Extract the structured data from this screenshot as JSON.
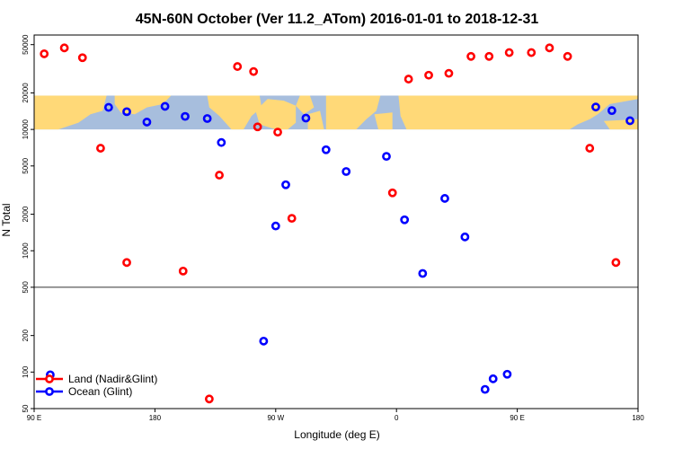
{
  "chart_data": {
    "type": "scatter",
    "title": "45N-60N October (Ver 11.2_ATom)   2016-01-01 to 2018-12-31",
    "xlabel": "Longitude (deg E)",
    "ylabel": "N Total",
    "x_scale": "linear",
    "y_scale": "log",
    "xlim": [
      -120,
      180
    ],
    "ylim": [
      50,
      60000
    ],
    "x_ticks": [
      {
        "value": -120,
        "label": "90 E"
      },
      {
        "value": -60,
        "label": "180"
      },
      {
        "value": 0,
        "label": "90 W"
      },
      {
        "value": 60,
        "label": "0"
      },
      {
        "value": 120,
        "label": "90 E"
      },
      {
        "value": 180,
        "label": "180"
      }
    ],
    "y_ticks": [
      {
        "value": 50,
        "label": "50"
      },
      {
        "value": 100,
        "label": "100"
      },
      {
        "value": 200,
        "label": "200"
      },
      {
        "value": 500,
        "label": "500"
      },
      {
        "value": 1000,
        "label": "1000"
      },
      {
        "value": 2000,
        "label": "2000"
      },
      {
        "value": 5000,
        "label": "5000"
      },
      {
        "value": 10000,
        "label": "10000"
      },
      {
        "value": 20000,
        "label": "20000"
      },
      {
        "value": 50000,
        "label": "50000"
      }
    ],
    "reference_line_y": 500,
    "map_band_y": [
      10000,
      19000
    ],
    "legend_position": "bottom-left",
    "grid": false,
    "series": [
      {
        "name": "Land (Nadir&Glint)",
        "color": "#ff0000",
        "points": [
          [
            -115,
            42000
          ],
          [
            -105,
            47000
          ],
          [
            -96,
            39000
          ],
          [
            -87,
            7000
          ],
          [
            -74,
            800
          ],
          [
            -46,
            680
          ],
          [
            -33,
            60
          ],
          [
            -28,
            4200
          ],
          [
            -19,
            33000
          ],
          [
            -11,
            30000
          ],
          [
            -9,
            10500
          ],
          [
            1,
            9500
          ],
          [
            8,
            1850
          ],
          [
            58,
            3000
          ],
          [
            66,
            26000
          ],
          [
            76,
            28000
          ],
          [
            86,
            29000
          ],
          [
            97,
            40000
          ],
          [
            106,
            40000
          ],
          [
            116,
            43000
          ],
          [
            127,
            43000
          ],
          [
            136,
            47000
          ],
          [
            145,
            40000
          ],
          [
            156,
            7000
          ],
          [
            169,
            800
          ]
        ]
      },
      {
        "name": "Ocean (Glint)",
        "color": "#0000ff",
        "points": [
          [
            -112,
            95
          ],
          [
            -83,
            15200
          ],
          [
            -74,
            14000
          ],
          [
            -64,
            11500
          ],
          [
            -55,
            15500
          ],
          [
            -45,
            12800
          ],
          [
            -34,
            12300
          ],
          [
            -27,
            7800
          ],
          [
            -6,
            180
          ],
          [
            0,
            1600
          ],
          [
            5,
            3500
          ],
          [
            15,
            12400
          ],
          [
            25,
            6800
          ],
          [
            35,
            4500
          ],
          [
            55,
            6000
          ],
          [
            64,
            1800
          ],
          [
            73,
            650
          ],
          [
            84,
            2700
          ],
          [
            94,
            1300
          ],
          [
            104,
            72
          ],
          [
            108,
            88
          ],
          [
            115,
            96
          ],
          [
            159,
            15300
          ],
          [
            167,
            14300
          ],
          [
            176,
            11800
          ]
        ]
      }
    ]
  }
}
